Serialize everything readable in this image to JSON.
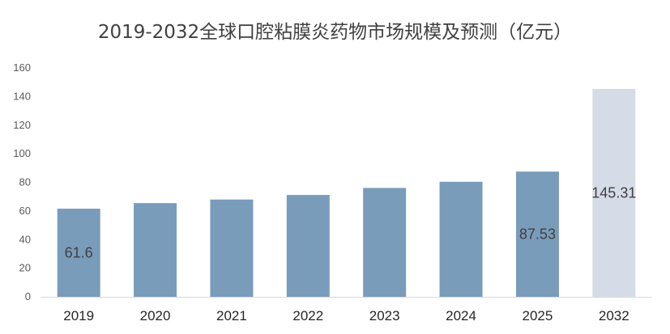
{
  "chart_data": {
    "type": "bar",
    "title": "2019-2032全球口腔粘膜炎药物市场规模及预测（亿元）",
    "xlabel": "",
    "ylabel": "",
    "categories": [
      "2019",
      "2020",
      "2021",
      "2022",
      "2023",
      "2024",
      "2025",
      "2032"
    ],
    "values": [
      61.6,
      65.5,
      68.0,
      71.2,
      76.1,
      80.4,
      87.53,
      145.31
    ],
    "data_labels": [
      "61.6",
      "",
      "",
      "",
      "",
      "",
      "87.53",
      "145.31"
    ],
    "ylim": [
      0,
      160
    ],
    "yticks": [
      0,
      20,
      40,
      60,
      80,
      100,
      120,
      140,
      160
    ],
    "grid": false,
    "colors": {
      "actual": "#7a9cbb",
      "forecast": "#d6dce7",
      "axis": "#d9d9d9"
    },
    "forecast_categories": [
      "2032"
    ]
  }
}
